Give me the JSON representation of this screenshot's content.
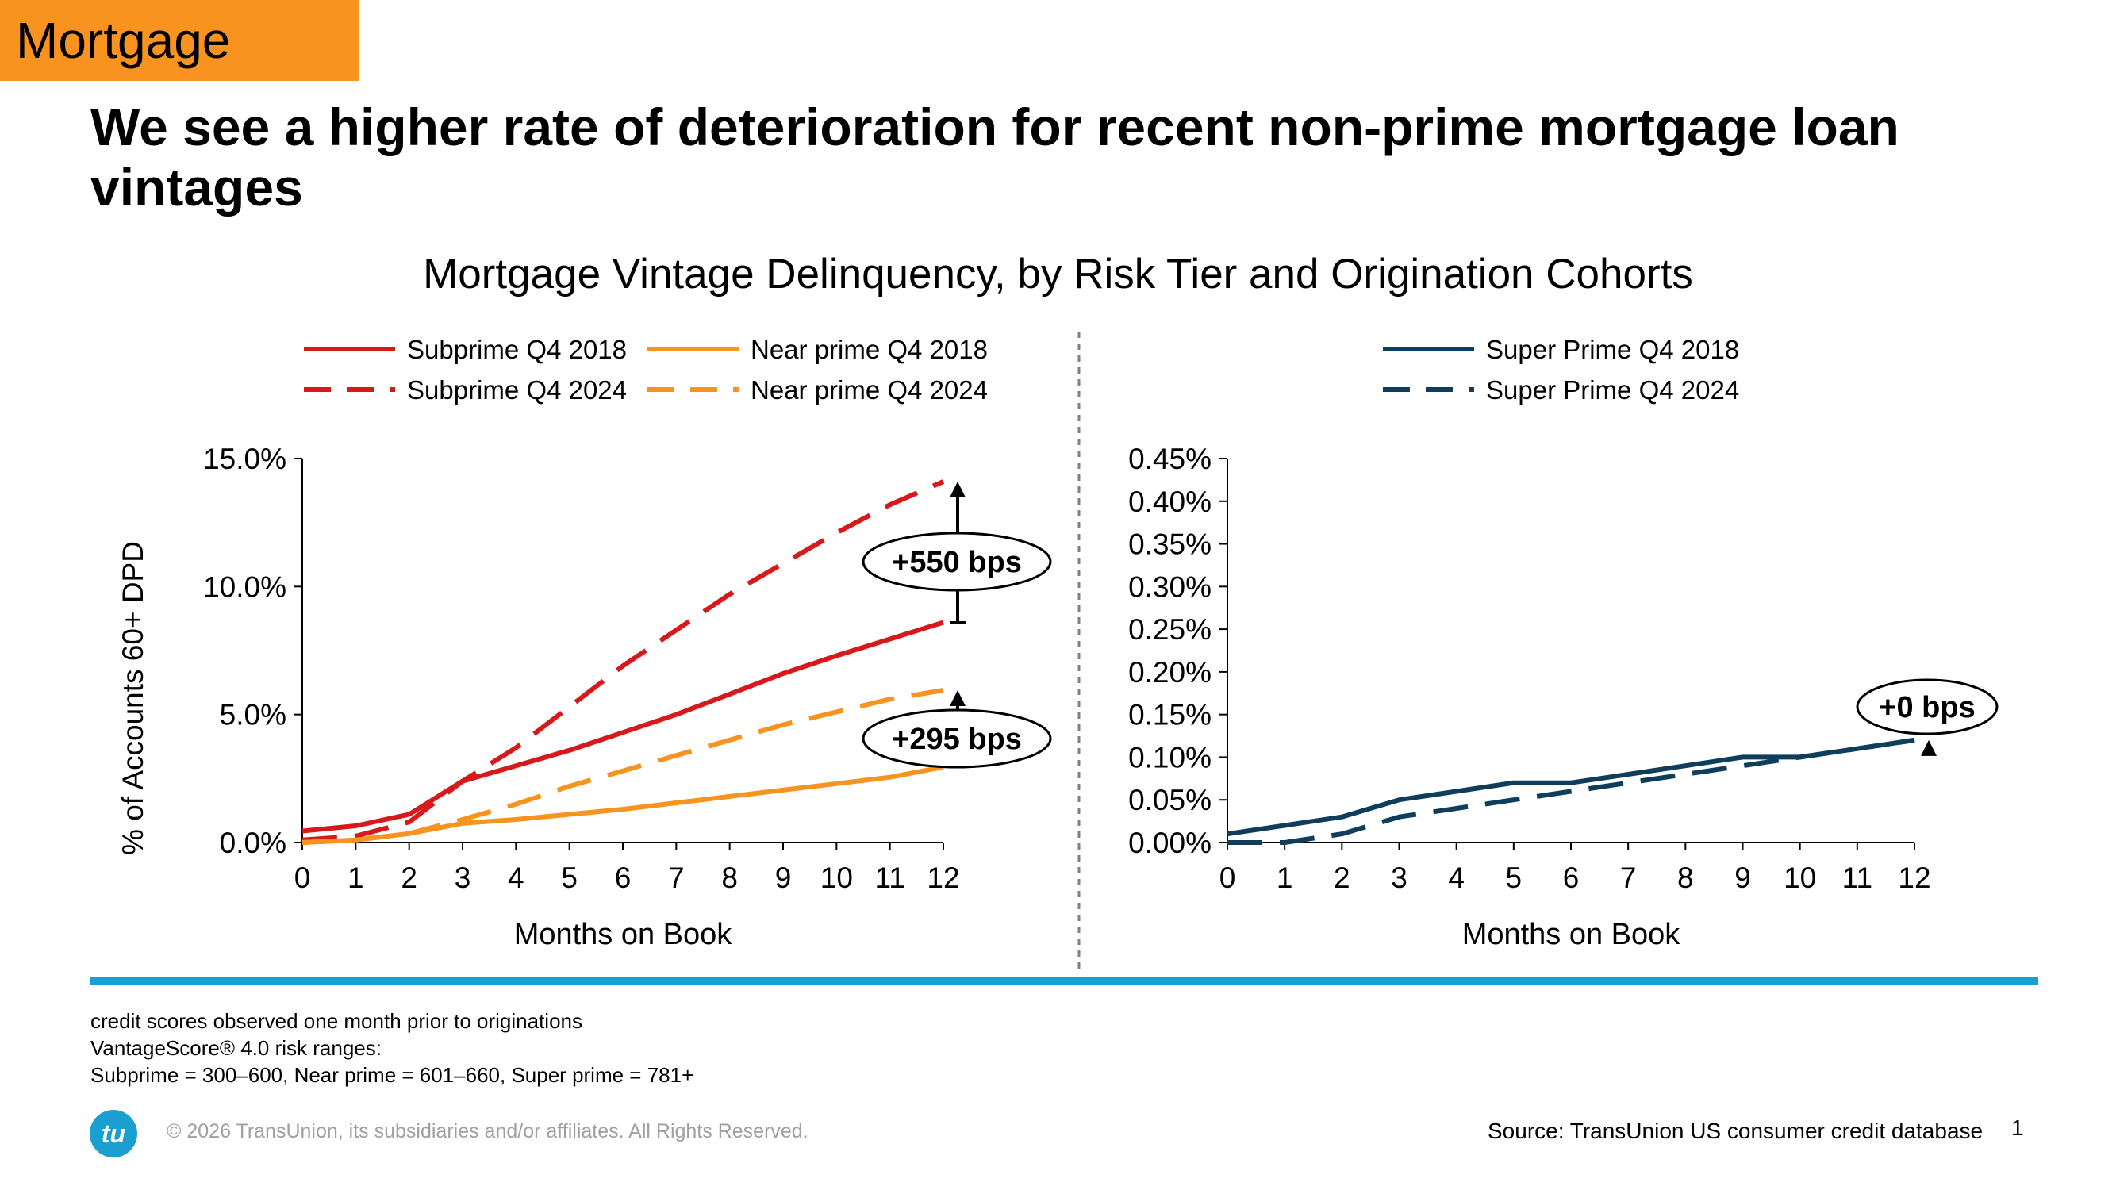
{
  "section_tag": "Mortgage",
  "headline": "We see a higher rate of deterioration for recent non-prime mortgage loan vintages",
  "chart_title": "Mortgage Vintage Delinquency, by Risk Tier and Origination Cohorts",
  "colors": {
    "tag_bg": "#f7931e",
    "subprime": "#d7191c",
    "near_prime": "#f7931e",
    "super_prime": "#0f3d5c",
    "divider_bar": "#1a9fd0"
  },
  "chart_data": [
    {
      "type": "line",
      "xlabel": "Months on Book",
      "ylabel": "% of Accounts 60+ DPD",
      "x": [
        0,
        1,
        2,
        3,
        4,
        5,
        6,
        7,
        8,
        9,
        10,
        11,
        12
      ],
      "x_tick_labels": [
        "0",
        "1",
        "2",
        "3",
        "4",
        "5",
        "6",
        "7",
        "8",
        "9",
        "10",
        "11",
        "12"
      ],
      "ylim": [
        0,
        15
      ],
      "y_ticks": [
        0,
        5,
        10,
        15
      ],
      "y_tick_labels": [
        "0.0%",
        "5.0%",
        "10.0%",
        "15.0%"
      ],
      "legend_placement": "top",
      "series": [
        {
          "name": "Subprime Q4 2018",
          "color": "#d7191c",
          "dash": "solid",
          "values": [
            0.45,
            0.65,
            1.1,
            2.4,
            3.0,
            3.6,
            4.3,
            5.0,
            5.8,
            6.6,
            7.3,
            7.95,
            8.6
          ]
        },
        {
          "name": "Subprime Q4 2024",
          "color": "#d7191c",
          "dash": "dashed",
          "values": [
            0.1,
            0.25,
            0.8,
            2.4,
            3.7,
            5.3,
            6.9,
            8.3,
            9.7,
            10.9,
            12.1,
            13.2,
            14.1
          ]
        },
        {
          "name": "Near prime Q4 2018",
          "color": "#f7931e",
          "dash": "solid",
          "values": [
            0.0,
            0.1,
            0.35,
            0.75,
            0.9,
            1.1,
            1.3,
            1.55,
            1.8,
            2.05,
            2.3,
            2.55,
            2.95
          ]
        },
        {
          "name": "Near prime Q4 2024",
          "color": "#f7931e",
          "dash": "dashed",
          "values": [
            0.0,
            0.1,
            0.35,
            0.9,
            1.5,
            2.2,
            2.8,
            3.4,
            4.0,
            4.6,
            5.1,
            5.6,
            5.95
          ]
        }
      ],
      "annotations": [
        {
          "text": "+550 bps",
          "x": 12,
          "from": 8.6,
          "to": 14.1
        },
        {
          "text": "+295 bps",
          "x": 12,
          "from": 2.95,
          "to": 5.95
        }
      ]
    },
    {
      "type": "line",
      "xlabel": "Months on Book",
      "ylabel": "",
      "x": [
        0,
        1,
        2,
        3,
        4,
        5,
        6,
        7,
        8,
        9,
        10,
        11,
        12
      ],
      "x_tick_labels": [
        "0",
        "1",
        "2",
        "3",
        "4",
        "5",
        "6",
        "7",
        "8",
        "9",
        "10",
        "11",
        "12"
      ],
      "ylim": [
        0,
        0.45
      ],
      "y_ticks": [
        0,
        0.05,
        0.1,
        0.15,
        0.2,
        0.25,
        0.3,
        0.35,
        0.4,
        0.45
      ],
      "y_tick_labels": [
        "0.00%",
        "0.05%",
        "0.10%",
        "0.15%",
        "0.20%",
        "0.25%",
        "0.30%",
        "0.35%",
        "0.40%",
        "0.45%"
      ],
      "legend_placement": "top",
      "series": [
        {
          "name": "Super Prime Q4 2018",
          "color": "#0f3d5c",
          "dash": "solid",
          "values": [
            0.01,
            0.02,
            0.03,
            0.05,
            0.06,
            0.07,
            0.07,
            0.08,
            0.09,
            0.1,
            0.1,
            0.11,
            0.12
          ]
        },
        {
          "name": "Super Prime Q4 2024",
          "color": "#0f3d5c",
          "dash": "dashed",
          "values": [
            0.0,
            0.0,
            0.01,
            0.03,
            0.04,
            0.05,
            0.06,
            0.07,
            0.08,
            0.09,
            0.1,
            0.11,
            0.12
          ]
        }
      ],
      "annotations": [
        {
          "text": "+0 bps",
          "x": 12,
          "from": 0.12,
          "to": 0.12
        }
      ]
    }
  ],
  "footnote": {
    "line1": "credit scores observed one month prior to originations",
    "line2": "VantageScore® 4.0 risk ranges:",
    "line3": "Subprime = 300–600, Near prime = 601–660, Super prime = 781+"
  },
  "copyright": "© 2026 TransUnion, its subsidiaries and/or affiliates. All Rights Reserved.",
  "logo_text": "tu",
  "source": "Source: TransUnion US consumer credit database",
  "page_number": "1"
}
